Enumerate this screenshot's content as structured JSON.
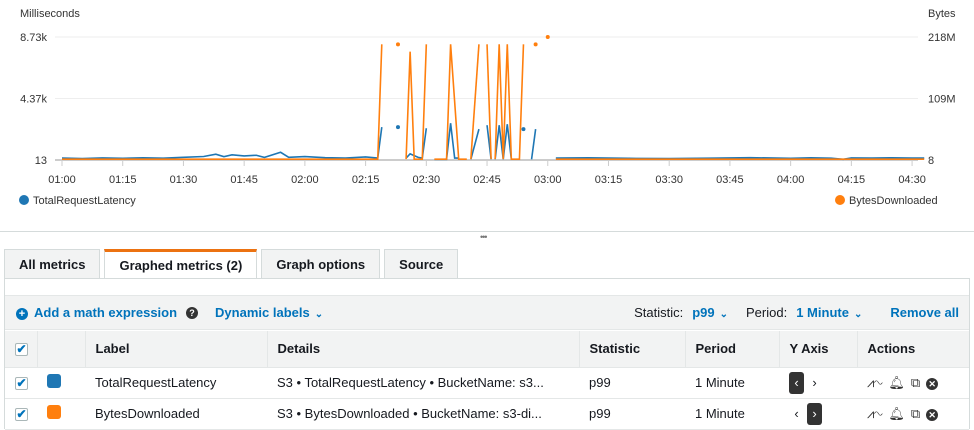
{
  "chart_data": {
    "type": "line",
    "left_axis": {
      "label": "Milliseconds",
      "ticks": [
        "8.73k",
        "4.37k",
        "13"
      ],
      "range": [
        13,
        8730
      ]
    },
    "right_axis": {
      "label": "Bytes",
      "ticks": [
        "218M",
        "109M",
        "8"
      ],
      "range": [
        8,
        218000000
      ]
    },
    "x_ticks": [
      "01:00",
      "01:15",
      "01:30",
      "01:45",
      "02:00",
      "02:15",
      "02:30",
      "02:45",
      "03:00",
      "03:15",
      "03:30",
      "03:45",
      "04:00",
      "04:15",
      "04:30"
    ],
    "x_range": [
      "01:00",
      "04:33"
    ],
    "grid": true,
    "legend_placement": "bottom",
    "series": [
      {
        "name": "TotalRequestLatency",
        "axis": "left",
        "color": "#1f77b4",
        "points": [
          [
            "01:00",
            150
          ],
          [
            "01:05",
            120
          ],
          [
            "01:10",
            160
          ],
          [
            "01:15",
            130
          ],
          [
            "01:20",
            170
          ],
          [
            "01:25",
            140
          ],
          [
            "01:30",
            200
          ],
          [
            "01:35",
            260
          ],
          [
            "01:38",
            420
          ],
          [
            "01:40",
            250
          ],
          [
            "01:42",
            380
          ],
          [
            "01:45",
            300
          ],
          [
            "01:48",
            350
          ],
          [
            "01:50",
            200
          ],
          [
            "01:54",
            560
          ],
          [
            "01:56",
            200
          ],
          [
            "02:00",
            260
          ],
          [
            "02:05",
            180
          ],
          [
            "02:10",
            150
          ],
          [
            "02:15",
            230
          ],
          [
            "02:18",
            150
          ],
          [
            "02:19",
            2340
          ],
          null,
          [
            "02:23",
            2340
          ],
          null,
          [
            "02:25",
            150
          ],
          [
            "02:26",
            450
          ],
          [
            "02:28",
            200
          ],
          [
            "02:29",
            150
          ],
          [
            "02:30",
            2260
          ],
          null,
          [
            "02:32",
            60
          ],
          [
            "02:35",
            60
          ],
          [
            "02:36",
            2620
          ],
          [
            "02:37",
            150
          ],
          [
            "02:38",
            150
          ],
          null,
          [
            "02:41",
            60
          ],
          [
            "02:43",
            2200
          ],
          null,
          [
            "02:45",
            2480
          ],
          [
            "02:46",
            60
          ],
          null,
          [
            "02:47",
            60
          ],
          [
            "02:48",
            2480
          ],
          [
            "02:49",
            60
          ],
          [
            "02:50",
            2550
          ],
          [
            "02:51",
            60
          ],
          null,
          [
            "02:54",
            2200
          ],
          null,
          [
            "02:56",
            60
          ],
          [
            "02:57",
            2200
          ],
          null,
          [
            "03:02",
            150
          ],
          [
            "03:10",
            170
          ],
          [
            "03:20",
            130
          ],
          [
            "03:30",
            120
          ],
          [
            "03:40",
            140
          ],
          [
            "03:50",
            180
          ],
          [
            "04:00",
            130
          ],
          [
            "04:05",
            170
          ],
          [
            "04:10",
            140
          ],
          [
            "04:13",
            60
          ],
          [
            "04:15",
            160
          ],
          [
            "04:20",
            150
          ],
          [
            "04:25",
            170
          ],
          [
            "04:30",
            150
          ],
          [
            "04:33",
            150
          ]
        ]
      },
      {
        "name": "BytesDownloaded",
        "axis": "right",
        "color": "#ff7f0e",
        "points": [
          [
            "01:00",
            1500000
          ],
          [
            "02:18",
            1500000
          ],
          [
            "02:19",
            205000000
          ],
          null,
          [
            "02:23",
            205000000
          ],
          null,
          [
            "02:25",
            1500000
          ],
          [
            "02:26",
            192000000
          ],
          [
            "02:27",
            1500000
          ],
          [
            "02:29",
            1500000
          ],
          [
            "02:30",
            205000000
          ],
          null,
          [
            "02:32",
            1500000
          ],
          [
            "02:35",
            1500000
          ],
          [
            "02:36",
            205000000
          ],
          [
            "02:38",
            1500000
          ],
          [
            "02:40",
            1500000
          ],
          null,
          [
            "02:41",
            1500000
          ],
          [
            "02:43",
            205000000
          ],
          null,
          [
            "02:45",
            205000000
          ],
          [
            "02:46",
            1500000
          ],
          null,
          [
            "02:47",
            1500000
          ],
          [
            "02:48",
            205000000
          ],
          [
            "02:49",
            1500000
          ],
          [
            "02:50",
            205000000
          ],
          [
            "02:51",
            1500000
          ],
          [
            "02:53",
            1500000
          ],
          [
            "02:54",
            205000000
          ],
          null,
          [
            "02:57",
            205000000
          ],
          null,
          [
            "03:00",
            218000000
          ],
          null,
          [
            "03:02",
            1500000
          ],
          [
            "04:33",
            1500000
          ]
        ]
      }
    ]
  },
  "tabs": [
    "All metrics",
    "Graphed metrics (2)",
    "Graph options",
    "Source"
  ],
  "toolbar": {
    "add_math": "Add a math expression",
    "help": "?",
    "dynamic_labels": "Dynamic labels",
    "statistic_label": "Statistic:",
    "statistic_value": "p99",
    "period_label": "Period:",
    "period_value": "1 Minute",
    "remove_all": "Remove all"
  },
  "table": {
    "headers": [
      "Label",
      "Details",
      "Statistic",
      "Period",
      "Y Axis",
      "Actions"
    ],
    "rows": [
      {
        "label": "TotalRequestLatency",
        "color": "#1f77b4",
        "details": "S3 • TotalRequestLatency • BucketName: s3...",
        "statistic": "p99",
        "period": "1 Minute",
        "y_axis": "left"
      },
      {
        "label": "BytesDownloaded",
        "color": "#ff7f0e",
        "details": "S3 • BytesDownloaded • BucketName: s3-di...",
        "statistic": "p99",
        "period": "1 Minute",
        "y_axis": "right"
      }
    ]
  }
}
